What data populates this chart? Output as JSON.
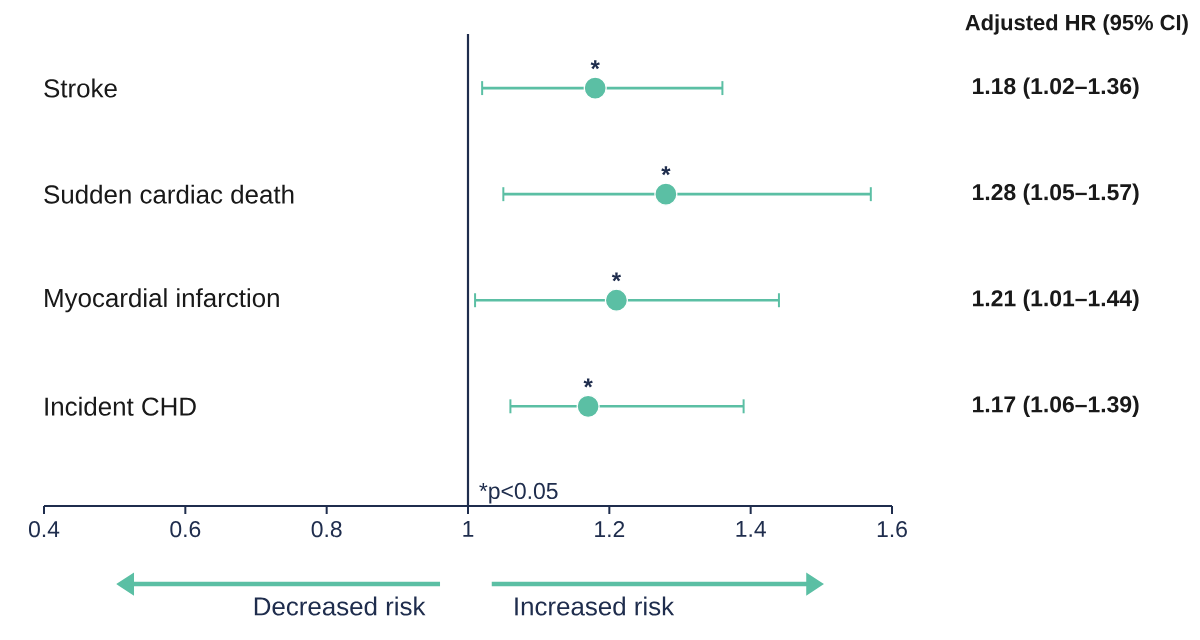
{
  "chart_data": {
    "type": "scatter",
    "orientation": "horizontal",
    "marker": "circle",
    "color": "#5bbfa4",
    "categories": [
      "Stroke",
      "Sudden cardiac death",
      "Myocardial infarction",
      "Incident CHD"
    ],
    "values": [
      1.18,
      1.28,
      1.21,
      1.17
    ],
    "errors": [
      [
        1.02,
        1.36
      ],
      [
        1.05,
        1.57
      ],
      [
        1.01,
        1.44
      ],
      [
        1.06,
        1.39
      ]
    ],
    "value_labels": [
      "1.18 (1.02–1.36)",
      "1.28 (1.05–1.57)",
      "1.21 (1.01–1.44)",
      "1.17 (1.06–1.39)"
    ],
    "xlim": [
      0.4,
      1.6
    ],
    "xticks": [
      0.4,
      0.6,
      0.8,
      1,
      1.2,
      1.4,
      1.6
    ],
    "ref_lines": [
      {
        "axis": "x",
        "value": 1,
        "color": "#1f2d4d"
      }
    ],
    "annotations": [
      {
        "text": "*",
        "x": 1.18,
        "y": "Stroke"
      },
      {
        "text": "*",
        "x": 1.28,
        "y": "Sudden cardiac death"
      },
      {
        "text": "*",
        "x": 1.21,
        "y": "Myocardial infarction"
      },
      {
        "text": "*",
        "x": 1.17,
        "y": "Incident CHD"
      },
      "*p<0.05",
      "Adjusted HR (95% CI)",
      "Decreased risk",
      "Increased risk"
    ]
  }
}
